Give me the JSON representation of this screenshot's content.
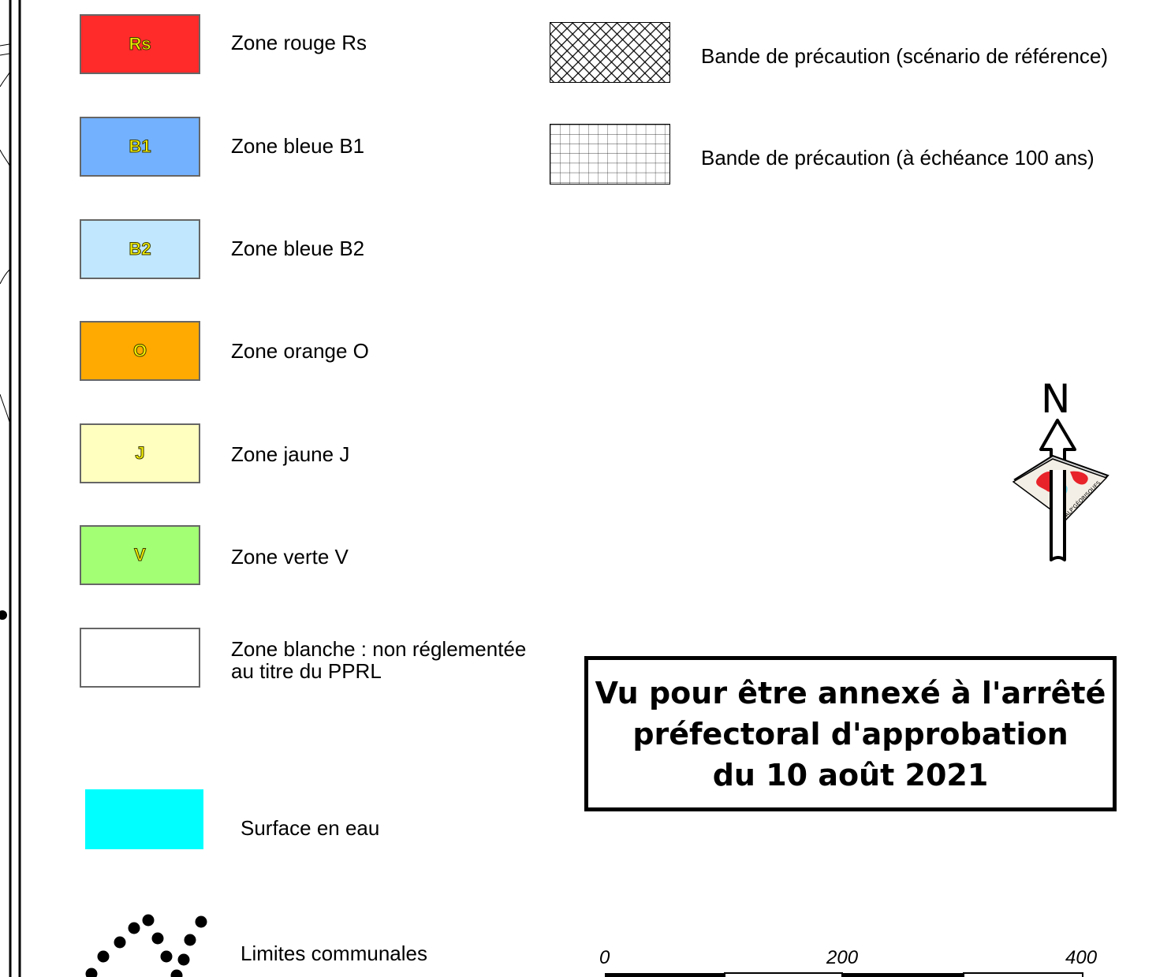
{
  "zones": [
    {
      "code": "Rs",
      "label": "Zone rouge Rs",
      "color": "#ff2a2a"
    },
    {
      "code": "B1",
      "label": "Zone bleue B1",
      "color": "#73b1ff"
    },
    {
      "code": "B2",
      "label": "Zone bleue B2",
      "color": "#c0e7fd"
    },
    {
      "code": "O",
      "label": "Zone orange O",
      "color": "#ffaa00"
    },
    {
      "code": "J",
      "label": "Zone jaune J",
      "color": "#ffffc0"
    },
    {
      "code": "V",
      "label": "Zone verte V",
      "color": "#a3ff73"
    }
  ],
  "white_zone": {
    "label_line1": "Zone blanche : non réglementée",
    "label_line2": "au titre du PPRL",
    "color": "#ffffff"
  },
  "water": {
    "label": "Surface en eau",
    "color": "#00ffff"
  },
  "communal_limits": {
    "label": "Limites communales",
    "symbol": "dotted-line"
  },
  "precaution_bands": [
    {
      "label": "Bande de précaution (scénario de référence)",
      "pattern": "cross-hatch"
    },
    {
      "label": "Bande de précaution (à échéance 100 ans)",
      "pattern": "grid"
    }
  ],
  "approval": {
    "line1": "Vu pour être annexé à l'arrêté",
    "line2": "préfectoral d'approbation",
    "line3": "du 10 août 2021"
  },
  "north_arrow": {
    "letter": "N",
    "badge_text": "ALP'GÉORISQUES"
  },
  "scale_bar": {
    "ticks": [
      "0",
      "200",
      "400"
    ]
  }
}
